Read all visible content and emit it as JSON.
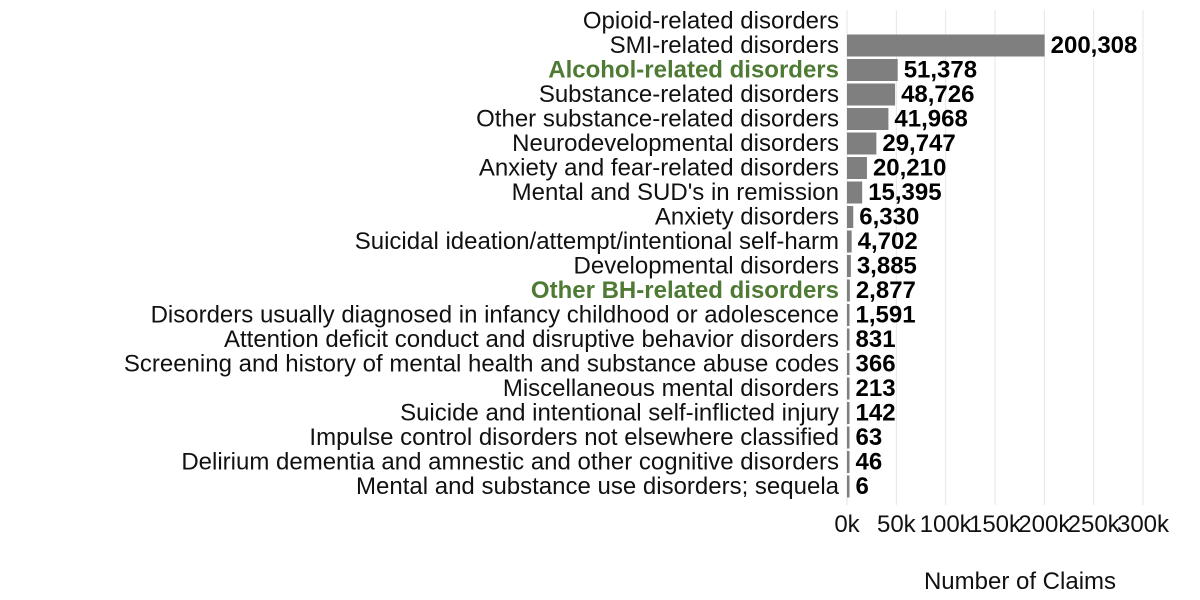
{
  "chart_data": {
    "type": "bar",
    "orientation": "horizontal",
    "categories": [
      "Opioid-related disorders",
      "SMI-related disorders",
      "Alcohol-related disorders",
      "Substance-related disorders",
      "Other substance-related disorders",
      "Neurodevelopmental disorders",
      "Anxiety and fear-related disorders",
      "Mental and SUD's in remission",
      "Anxiety disorders",
      "Suicidal ideation/attempt/intentional self-harm",
      "Developmental disorders",
      "Other BH-related disorders",
      "Disorders usually diagnosed in infancy childhood or adolescence",
      "Attention deficit conduct and disruptive behavior disorders",
      "Screening and history of mental health and substance abuse codes",
      "Miscellaneous mental disorders",
      "Suicide and intentional self-inflicted injury",
      "Impulse control disorders not elsewhere classified",
      "Delirium dementia and amnestic and other cognitive disorders",
      "Mental and substance use disorders; sequela"
    ],
    "values": [
      null,
      200308,
      51378,
      48726,
      41968,
      29747,
      20210,
      15395,
      6330,
      4702,
      3885,
      2877,
      1591,
      831,
      366,
      213,
      142,
      63,
      46,
      6
    ],
    "value_labels": [
      "",
      "200,308",
      "51,378",
      "48,726",
      "41,968",
      "29,747",
      "20,210",
      "15,395",
      "6,330",
      "4,702",
      "3,885",
      "2,877",
      "1,591",
      "831",
      "366",
      "213",
      "142",
      "63",
      "46",
      "6"
    ],
    "highlighted_categories": [
      "Alcohol-related disorders",
      "Other BH-related disorders"
    ],
    "xlabel": "Number of Claims",
    "ylabel": "",
    "xlim": [
      0,
      300000
    ],
    "x_ticks": [
      0,
      50000,
      100000,
      150000,
      200000,
      250000,
      300000
    ],
    "x_tick_labels": [
      "0k",
      "50k",
      "100k",
      "150k",
      "200k",
      "250k",
      "300k"
    ],
    "grid": true,
    "colors": {
      "bar": "#7f7f7f",
      "highlight_text": "#4e7a34",
      "grid": "#e6e6e6"
    }
  }
}
